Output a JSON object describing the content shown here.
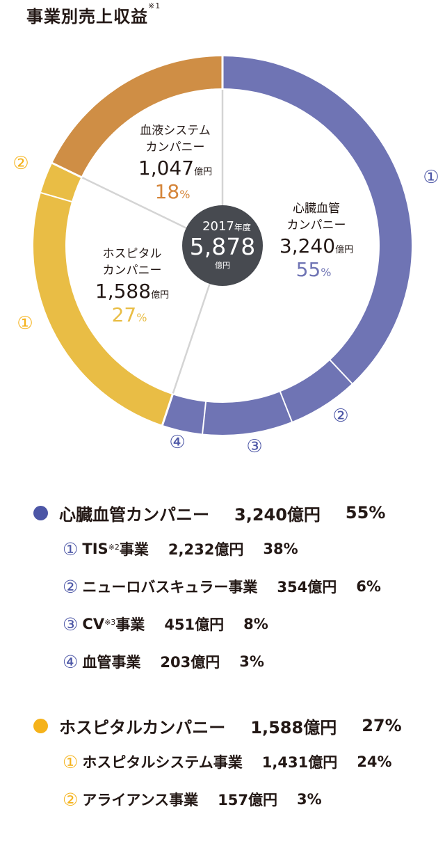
{
  "title": "事業別売上収益",
  "title_note": "※1",
  "colors": {
    "cardio": "#6f74b4",
    "cardio_legend": "#4c56a6",
    "hospital": "#e9bd45",
    "hospital_legend": "#f5b21a",
    "blood": "#cf8e45",
    "blood_text": "#d5853a",
    "center": "#474a50",
    "divider": "#d4d4d4"
  },
  "chart_data": {
    "type": "donut",
    "title": "事業別売上収益",
    "center": {
      "year": "2017",
      "year_suffix": "年度",
      "value": "5,878",
      "unit": "億円"
    },
    "segments": [
      {
        "name": "心臓血管カンパニー",
        "value": 3240,
        "percent": 55,
        "value_label": "3,240",
        "unit": "億円",
        "percent_label": "55",
        "sub": [
          {
            "marker": "①",
            "name": "TIS事業",
            "value": 2232,
            "percent": 38
          },
          {
            "marker": "②",
            "name": "ニューロバスキュラー事業",
            "value": 354,
            "percent": 6
          },
          {
            "marker": "③",
            "name": "CV事業",
            "value": 451,
            "percent": 8
          },
          {
            "marker": "④",
            "name": "血管事業",
            "value": 203,
            "percent": 3
          }
        ]
      },
      {
        "name": "ホスピタルカンパニー",
        "value": 1588,
        "percent": 27,
        "value_label": "1,588",
        "unit": "億円",
        "percent_label": "27",
        "sub": [
          {
            "marker": "①",
            "name": "ホスピタルシステム事業",
            "value": 1431,
            "percent": 24
          },
          {
            "marker": "②",
            "name": "アライアンス事業",
            "value": 157,
            "percent": 3
          }
        ]
      },
      {
        "name": "血液システムカンパニー",
        "value": 1047,
        "percent": 18,
        "value_label": "1,047",
        "unit": "億円",
        "percent_label": "18",
        "sub": []
      }
    ]
  },
  "inner_labels": {
    "cardio": {
      "line1": "心臓血管",
      "line2": "カンパニー",
      "value": "3,240",
      "unit": "億円",
      "pct": "55",
      "pct_sign": "%"
    },
    "hospital": {
      "line1": "ホスピタル",
      "line2": "カンパニー",
      "value": "1,588",
      "unit": "億円",
      "pct": "27",
      "pct_sign": "%"
    },
    "blood": {
      "line1": "血液システム",
      "line2": "カンパニー",
      "value": "1,047",
      "unit": "億円",
      "pct": "18",
      "pct_sign": "%"
    }
  },
  "outer_markers": {
    "cardio": [
      "①",
      "②",
      "③",
      "④"
    ],
    "hospital": [
      "①",
      "②"
    ]
  },
  "legend": {
    "cardio": {
      "name": "心臓血管カンパニー",
      "value": "3,240億円",
      "pct": "55%",
      "items": [
        {
          "marker": "①",
          "name": "TIS",
          "note": "※2",
          "suffix": "事業",
          "value": "2,232億円",
          "pct": "38%"
        },
        {
          "marker": "②",
          "name": "ニューロバスキュラー事業",
          "note": "",
          "suffix": "",
          "value": "354億円",
          "pct": "6%"
        },
        {
          "marker": "③",
          "name": "CV",
          "note": "※3",
          "suffix": "事業",
          "value": "451億円",
          "pct": "8%"
        },
        {
          "marker": "④",
          "name": "血管事業",
          "note": "",
          "suffix": "",
          "value": "203億円",
          "pct": "3%"
        }
      ]
    },
    "hospital": {
      "name": "ホスピタルカンパニー",
      "value": "1,588億円",
      "pct": "27%",
      "items": [
        {
          "marker": "①",
          "name": "ホスピタルシステム事業",
          "note": "",
          "suffix": "",
          "value": "1,431億円",
          "pct": "24%"
        },
        {
          "marker": "②",
          "name": "アライアンス事業",
          "note": "",
          "suffix": "",
          "value": "157億円",
          "pct": "3%"
        }
      ]
    }
  }
}
